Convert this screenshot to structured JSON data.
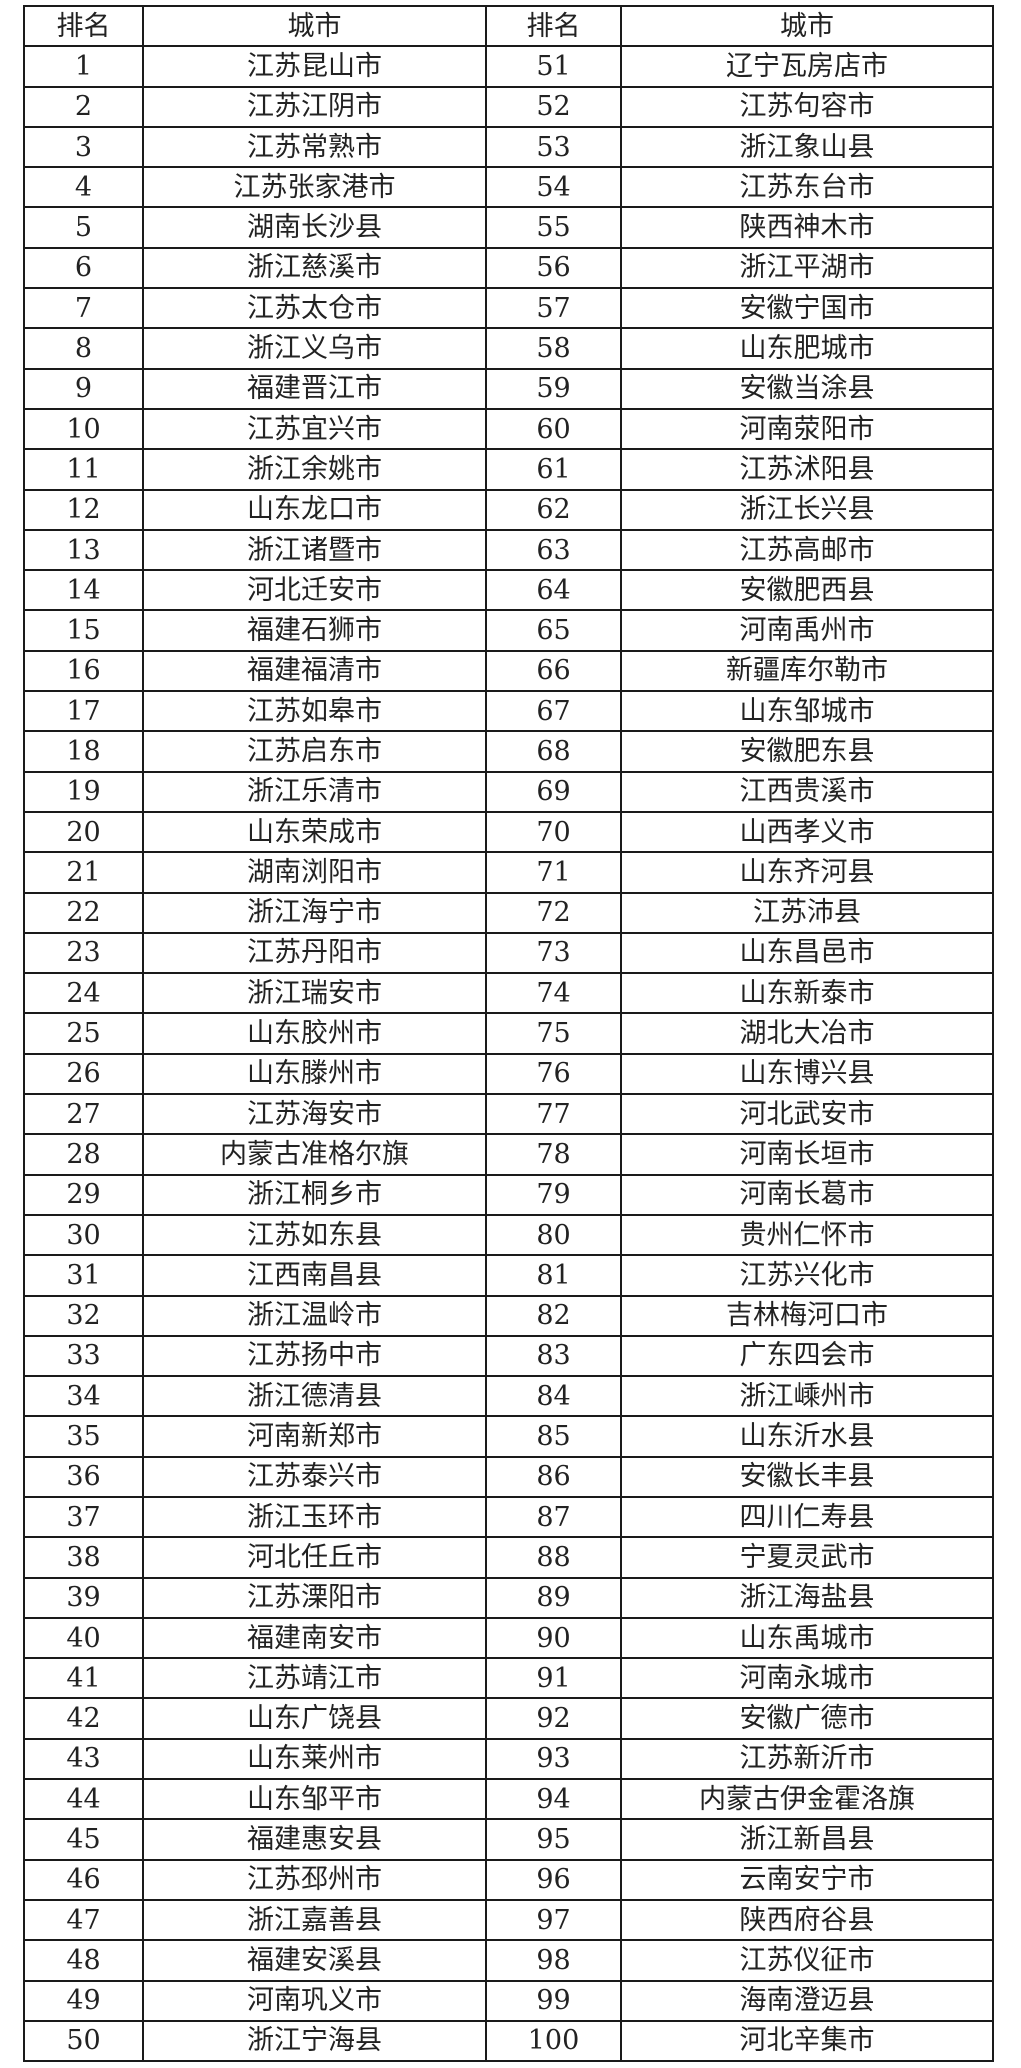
{
  "headers": [
    "排名",
    "城市",
    "排名",
    "城市"
  ],
  "rows": [
    [
      "1",
      "江苏昆山市",
      "51",
      "辽宁瓦房店市"
    ],
    [
      "2",
      "江苏江阴市",
      "52",
      "江苏句容市"
    ],
    [
      "3",
      "江苏常熟市",
      "53",
      "浙江象山县"
    ],
    [
      "4",
      "江苏张家港市",
      "54",
      "江苏东台市"
    ],
    [
      "5",
      "湖南长沙县",
      "55",
      "陕西神木市"
    ],
    [
      "6",
      "浙江慈溪市",
      "56",
      "浙江平湖市"
    ],
    [
      "7",
      "江苏太仓市",
      "57",
      "安徽宁国市"
    ],
    [
      "8",
      "浙江义乌市",
      "58",
      "山东肥城市"
    ],
    [
      "9",
      "福建晋江市",
      "59",
      "安徽当涂县"
    ],
    [
      "10",
      "江苏宜兴市",
      "60",
      "河南荥阳市"
    ],
    [
      "11",
      "浙江余姚市",
      "61",
      "江苏沭阳县"
    ],
    [
      "12",
      "山东龙口市",
      "62",
      "浙江长兴县"
    ],
    [
      "13",
      "浙江诸暨市",
      "63",
      "江苏高邮市"
    ],
    [
      "14",
      "河北迁安市",
      "64",
      "安徽肥西县"
    ],
    [
      "15",
      "福建石狮市",
      "65",
      "河南禹州市"
    ],
    [
      "16",
      "福建福清市",
      "66",
      "新疆库尔勒市"
    ],
    [
      "17",
      "江苏如皋市",
      "67",
      "山东邹城市"
    ],
    [
      "18",
      "江苏启东市",
      "68",
      "安徽肥东县"
    ],
    [
      "19",
      "浙江乐清市",
      "69",
      "江西贵溪市"
    ],
    [
      "20",
      "山东荣成市",
      "70",
      "山西孝义市"
    ],
    [
      "21",
      "湖南浏阳市",
      "71",
      "山东齐河县"
    ],
    [
      "22",
      "浙江海宁市",
      "72",
      "江苏沛县"
    ],
    [
      "23",
      "江苏丹阳市",
      "73",
      "山东昌邑市"
    ],
    [
      "24",
      "浙江瑞安市",
      "74",
      "山东新泰市"
    ],
    [
      "25",
      "山东胶州市",
      "75",
      "湖北大冶市"
    ],
    [
      "26",
      "山东滕州市",
      "76",
      "山东博兴县"
    ],
    [
      "27",
      "江苏海安市",
      "77",
      "河北武安市"
    ],
    [
      "28",
      "内蒙古准格尔旗",
      "78",
      "河南长垣市"
    ],
    [
      "29",
      "浙江桐乡市",
      "79",
      "河南长葛市"
    ],
    [
      "30",
      "江苏如东县",
      "80",
      "贵州仁怀市"
    ],
    [
      "31",
      "江西南昌县",
      "81",
      "江苏兴化市"
    ],
    [
      "32",
      "浙江温岭市",
      "82",
      "吉林梅河口市"
    ],
    [
      "33",
      "江苏扬中市",
      "83",
      "广东四会市"
    ],
    [
      "34",
      "浙江德清县",
      "84",
      "浙江嵊州市"
    ],
    [
      "35",
      "河南新郑市",
      "85",
      "山东沂水县"
    ],
    [
      "36",
      "江苏泰兴市",
      "86",
      "安徽长丰县"
    ],
    [
      "37",
      "浙江玉环市",
      "87",
      "四川仁寿县"
    ],
    [
      "38",
      "河北任丘市",
      "88",
      "宁夏灵武市"
    ],
    [
      "39",
      "江苏溧阳市",
      "89",
      "浙江海盐县"
    ],
    [
      "40",
      "福建南安市",
      "90",
      "山东禹城市"
    ],
    [
      "41",
      "江苏靖江市",
      "91",
      "河南永城市"
    ],
    [
      "42",
      "山东广饶县",
      "92",
      "安徽广德市"
    ],
    [
      "43",
      "山东莱州市",
      "93",
      "江苏新沂市"
    ],
    [
      "44",
      "山东邹平市",
      "94",
      "内蒙古伊金霍洛旗"
    ],
    [
      "45",
      "福建惠安县",
      "95",
      "浙江新昌县"
    ],
    [
      "46",
      "江苏邳州市",
      "96",
      "云南安宁市"
    ],
    [
      "47",
      "浙江嘉善县",
      "97",
      "陕西府谷县"
    ],
    [
      "48",
      "福建安溪县",
      "98",
      "江苏仪征市"
    ],
    [
      "49",
      "河南巩义市",
      "99",
      "海南澄迈县"
    ],
    [
      "50",
      "浙江宁海县",
      "100",
      "河北辛集市"
    ]
  ]
}
